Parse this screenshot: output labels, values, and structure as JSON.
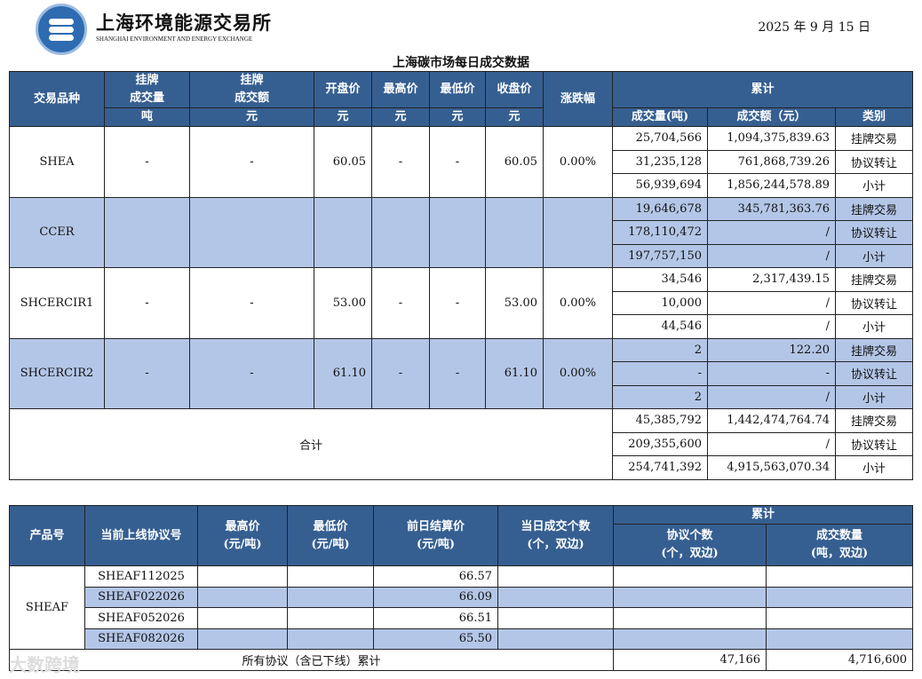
{
  "header": {
    "brand_cn": "上海环境能源交易所",
    "brand_en": "SHANGHAI ENVIRONMENT AND ENERGY EXCHANGE",
    "date": "2025 年 9 月 15 日",
    "title": "上海碳市场每日成交数据"
  },
  "colors": {
    "header_bg": "#365f91",
    "shade": "#b4c6e7"
  },
  "table1": {
    "headers": {
      "product": "交易品种",
      "listed_vol": "挂牌\n成交量",
      "listed_amt": "挂牌\n成交额",
      "open": "开盘价",
      "high": "最高价",
      "low": "最低价",
      "close": "收盘价",
      "change": "涨跌幅",
      "cumulative": "累计"
    },
    "units": {
      "listed_vol": "吨",
      "listed_amt": "元",
      "open": "元",
      "high": "元",
      "low": "元",
      "close": "元"
    },
    "cum_headers": {
      "vol": "成交量(吨)",
      "amt": "成交额（元）",
      "type": "类别"
    },
    "rows": [
      {
        "product": "SHEA",
        "listed_vol": "-",
        "listed_amt": "-",
        "open": "60.05",
        "high": "-",
        "low": "-",
        "close": "60.05",
        "change": "0.00%",
        "shaded": false,
        "cum": [
          {
            "vol": "25,704,566",
            "amt": "1,094,375,839.63",
            "type": "挂牌交易"
          },
          {
            "vol": "31,235,128",
            "amt": "761,868,739.26",
            "type": "协议转让"
          },
          {
            "vol": "56,939,694",
            "amt": "1,856,244,578.89",
            "type": "小计"
          }
        ]
      },
      {
        "product": "CCER",
        "listed_vol": "",
        "listed_amt": "",
        "open": "",
        "high": "",
        "low": "",
        "close": "",
        "change": "",
        "shaded": true,
        "cum": [
          {
            "vol": "19,646,678",
            "amt": "345,781,363.76",
            "type": "挂牌交易"
          },
          {
            "vol": "178,110,472",
            "amt": "/",
            "type": "协议转让"
          },
          {
            "vol": "197,757,150",
            "amt": "/",
            "type": "小计"
          }
        ]
      },
      {
        "product": "SHCERCIR1",
        "listed_vol": "-",
        "listed_amt": "-",
        "open": "53.00",
        "high": "-",
        "low": "-",
        "close": "53.00",
        "change": "0.00%",
        "shaded": false,
        "cum": [
          {
            "vol": "34,546",
            "amt": "2,317,439.15",
            "type": "挂牌交易"
          },
          {
            "vol": "10,000",
            "amt": "/",
            "type": "协议转让"
          },
          {
            "vol": "44,546",
            "amt": "/",
            "type": "小计"
          }
        ]
      },
      {
        "product": "SHCERCIR2",
        "listed_vol": "-",
        "listed_amt": "-",
        "open": "61.10",
        "high": "-",
        "low": "-",
        "close": "61.10",
        "change": "0.00%",
        "shaded": true,
        "cum": [
          {
            "vol": "2",
            "amt": "122.20",
            "type": "挂牌交易"
          },
          {
            "vol": "-",
            "amt": "-",
            "type": "协议转让"
          },
          {
            "vol": "2",
            "amt": "/",
            "type": "小计"
          }
        ]
      }
    ],
    "total": {
      "label": "合计",
      "cum": [
        {
          "vol": "45,385,792",
          "amt": "1,442,474,764.74",
          "type": "挂牌交易"
        },
        {
          "vol": "209,355,600",
          "amt": "/",
          "type": "协议转让"
        },
        {
          "vol": "254,741,392",
          "amt": "4,915,563,070.34",
          "type": "小计"
        }
      ]
    }
  },
  "table2": {
    "headers": {
      "product": "产品号",
      "contract": "当前上线协议号",
      "high": "最高价\n(元/吨)",
      "low": "最低价\n(元/吨)",
      "settle": "前日结算价\n(元/吨)",
      "count": "当日成交个数\n(个，双边)",
      "cumulative": "累计",
      "cum_count": "协议个数\n(个，双边)",
      "cum_qty": "成交数量\n(吨，双边)"
    },
    "product": "SHEAF",
    "rows": [
      {
        "contract": "SHEAF112025",
        "high": "",
        "low": "",
        "settle": "66.57",
        "count": "",
        "cum_count": "",
        "cum_qty": ""
      },
      {
        "contract": "SHEAF022026",
        "high": "",
        "low": "",
        "settle": "66.09",
        "count": "",
        "cum_count": "",
        "cum_qty": ""
      },
      {
        "contract": "SHEAF052026",
        "high": "",
        "low": "",
        "settle": "66.51",
        "count": "",
        "cum_count": "",
        "cum_qty": ""
      },
      {
        "contract": "SHEAF082026",
        "high": "",
        "low": "",
        "settle": "65.50",
        "count": "",
        "cum_count": "",
        "cum_qty": ""
      }
    ],
    "total": {
      "label": "所有协议（含已下线）累计",
      "cum_count": "47,166",
      "cum_qty": "4,716,600"
    }
  },
  "watermark": "大数跨境"
}
